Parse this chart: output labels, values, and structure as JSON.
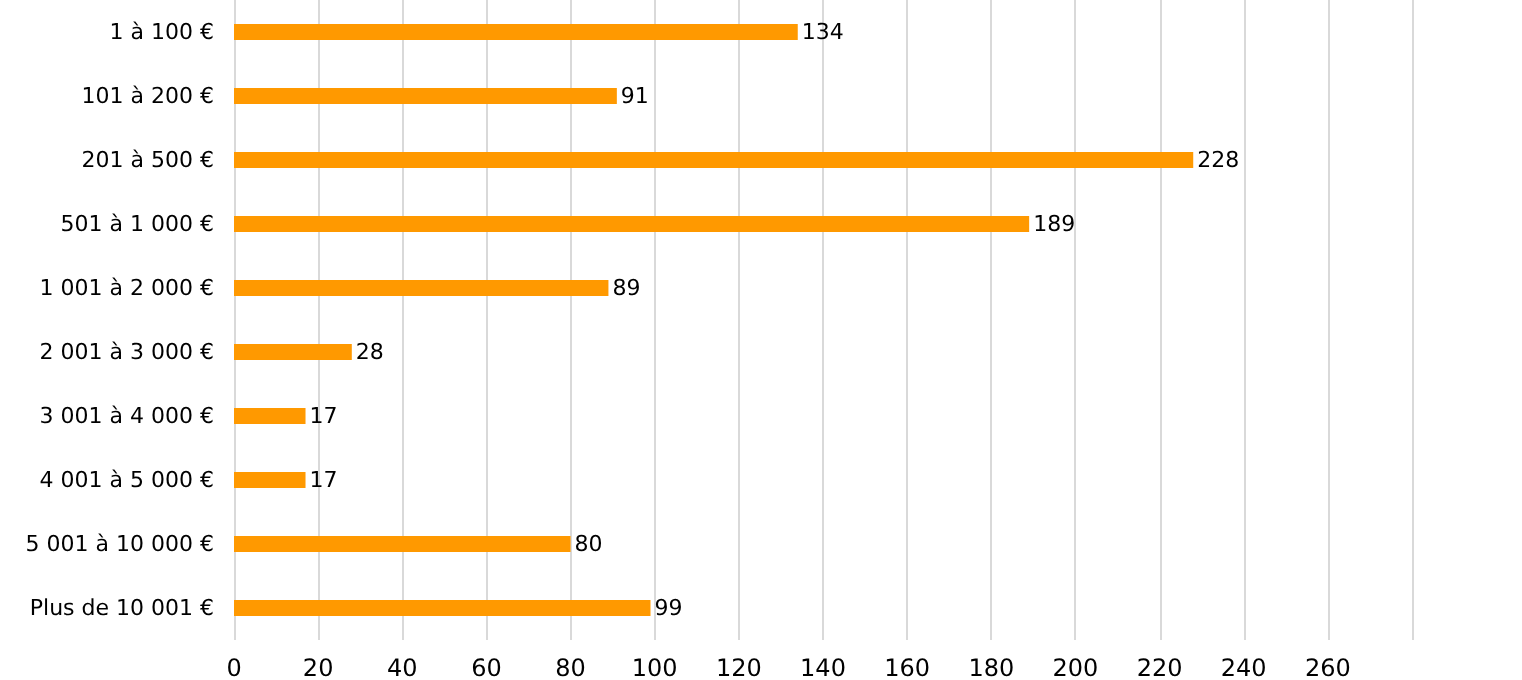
{
  "chart_data": {
    "type": "bar",
    "orientation": "horizontal",
    "categories": [
      "1 à 100 €",
      "101 à 200 €",
      "201 à 500 €",
      "501 à 1 000 €",
      "1 001 à 2 000 €",
      "2 001 à 3 000 €",
      "3 001 à 4 000 €",
      "4 001 à 5 000 €",
      "5 001 à 10 000 €",
      "Plus de 10 001 €"
    ],
    "values": [
      134,
      91,
      228,
      189,
      89,
      28,
      17,
      17,
      80,
      99
    ],
    "color": "#ff9900",
    "xlim": [
      0,
      280
    ],
    "xticks": [
      0,
      20,
      40,
      60,
      80,
      100,
      120,
      140,
      160,
      180,
      200,
      220,
      240,
      260,
      {
        "value": 280,
        "label": null
      }
    ],
    "grid": "x",
    "data_labels": true
  }
}
